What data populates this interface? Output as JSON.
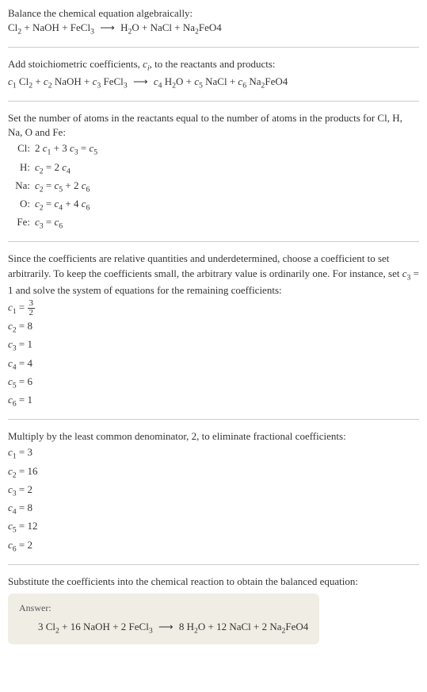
{
  "section1": {
    "line1_a": "Balance the chemical equation algebraically:",
    "eq_parts": {
      "cl2": "Cl",
      "cl2_sub": "2",
      "plus1": " + NaOH + FeCl",
      "fecl3_sub": "3",
      "arrow": "⟶",
      "h2o_h": "H",
      "h2o_2": "2",
      "h2o_o": "O",
      "nacl": " + NaCl + Na",
      "na2_sub": "2",
      "feo4": "FeO4"
    }
  },
  "section2": {
    "line1_a": "Add stoichiometric coefficients, ",
    "ci": "c",
    "ci_sub": "i",
    "line1_b": ", to the reactants and products:",
    "c1": "c",
    "s1": "1",
    "sp1": " Cl",
    "cl2s": "2",
    "p1": " + ",
    "c2": "c",
    "s2": "2",
    "sp2": " NaOH + ",
    "c3": "c",
    "s3": "3",
    "sp3": " FeCl",
    "fecl3s": "3",
    "arrow": "⟶",
    "c4": "c",
    "s4": "4",
    "sp4": " H",
    "h2s": "2",
    "sp4b": "O + ",
    "c5": "c",
    "s5": "5",
    "sp5": " NaCl + ",
    "c6": "c",
    "s6": "6",
    "sp6": " Na",
    "na2s": "2",
    "sp6b": "FeO4"
  },
  "section3": {
    "intro": "Set the number of atoms in the reactants equal to the number of atoms in the products for Cl, H, Na, O and Fe:",
    "rows": [
      {
        "label": "Cl:",
        "lhs_a": "2 ",
        "c1": "c",
        "s1": "1",
        "mid": " + 3 ",
        "c2": "c",
        "s2": "3",
        "eq": " = ",
        "c3": "c",
        "s3": "5"
      },
      {
        "label": "H:",
        "c1": "c",
        "s1": "2",
        "eq": " = 2 ",
        "c2": "c",
        "s2": "4"
      },
      {
        "label": "Na:",
        "c1": "c",
        "s1": "2",
        "eq": " = ",
        "c2": "c",
        "s2": "5",
        "mid": " + 2 ",
        "c3": "c",
        "s3": "6"
      },
      {
        "label": "O:",
        "c1": "c",
        "s1": "2",
        "eq": " = ",
        "c2": "c",
        "s2": "4",
        "mid": " + 4 ",
        "c3": "c",
        "s3": "6"
      },
      {
        "label": "Fe:",
        "c1": "c",
        "s1": "3",
        "eq": " = ",
        "c2": "c",
        "s2": "6"
      }
    ]
  },
  "section4": {
    "intro_a": "Since the coefficients are relative quantities and underdetermined, choose a coefficient to set arbitrarily. To keep the coefficients small, the arbitrary value is ordinarily one. For instance, set ",
    "c3": "c",
    "s3": "3",
    "intro_b": " = 1 and solve the system of equations for the remaining coefficients:",
    "coeffs": [
      {
        "c": "c",
        "s": "1",
        "eq": " = ",
        "frac_num": "3",
        "frac_den": "2"
      },
      {
        "c": "c",
        "s": "2",
        "eq": " = 8"
      },
      {
        "c": "c",
        "s": "3",
        "eq": " = 1"
      },
      {
        "c": "c",
        "s": "4",
        "eq": " = 4"
      },
      {
        "c": "c",
        "s": "5",
        "eq": " = 6"
      },
      {
        "c": "c",
        "s": "6",
        "eq": " = 1"
      }
    ]
  },
  "section5": {
    "intro": "Multiply by the least common denominator, 2, to eliminate fractional coefficients:",
    "coeffs": [
      {
        "c": "c",
        "s": "1",
        "eq": " = 3"
      },
      {
        "c": "c",
        "s": "2",
        "eq": " = 16"
      },
      {
        "c": "c",
        "s": "3",
        "eq": " = 2"
      },
      {
        "c": "c",
        "s": "4",
        "eq": " = 8"
      },
      {
        "c": "c",
        "s": "5",
        "eq": " = 12"
      },
      {
        "c": "c",
        "s": "6",
        "eq": " = 2"
      }
    ]
  },
  "section6": {
    "intro": "Substitute the coefficients into the chemical reaction to obtain the balanced equation:",
    "answer_label": "Answer:",
    "eq": {
      "p1": "3 Cl",
      "cl2s": "2",
      "p2": " + 16 NaOH + 2 FeCl",
      "fecl3s": "3",
      "arrow": "⟶",
      "p3": "8 H",
      "h2s": "2",
      "p3b": "O + 12 NaCl + 2 Na",
      "na2s": "2",
      "p3c": "FeO4"
    }
  },
  "colors": {
    "text": "#333333",
    "divider": "#cccccc",
    "answer_bg": "#f0eee4",
    "answer_label": "#555555"
  },
  "fonts": {
    "body_size": 13,
    "answer_label_size": 12
  }
}
